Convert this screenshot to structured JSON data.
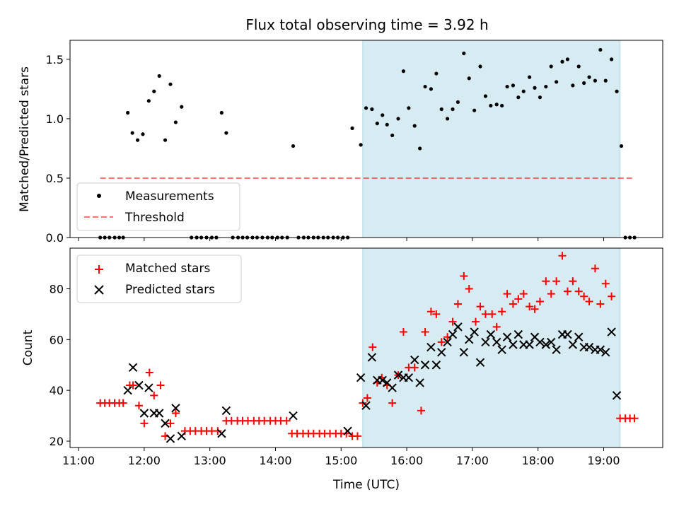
{
  "title": "Flux total observing time = 3.92 h",
  "colors": {
    "shade": "#add8e6",
    "threshold": "#ff0000",
    "matched": "#ff0000",
    "predicted": "#000000",
    "measurements": "#000000"
  },
  "chart_data": [
    {
      "type": "scatter",
      "ylabel": "Matched/Predicted stars",
      "xlim": [
        10.87,
        19.9
      ],
      "ylim": [
        0,
        1.66
      ],
      "yticks": [
        0.0,
        0.5,
        1.0,
        1.5
      ],
      "ytick_labels": [
        "0.0",
        "0.5",
        "1.0",
        "1.5"
      ],
      "xticks": [
        11,
        12,
        13,
        14,
        15,
        16,
        17,
        18,
        19
      ],
      "shaded_interval": [
        15.33,
        19.25
      ],
      "legend_position": "lower-left",
      "series": [
        {
          "name": "Measurements",
          "marker": "dot",
          "points": [
            [
              11.33,
              0
            ],
            [
              11.4,
              0
            ],
            [
              11.47,
              0
            ],
            [
              11.55,
              0
            ],
            [
              11.62,
              0
            ],
            [
              11.68,
              0
            ],
            [
              11.75,
              1.05
            ],
            [
              11.82,
              0.88
            ],
            [
              11.9,
              0.82
            ],
            [
              11.98,
              0.87
            ],
            [
              12.07,
              1.15
            ],
            [
              12.15,
              1.23
            ],
            [
              12.23,
              1.36
            ],
            [
              12.32,
              0.82
            ],
            [
              12.4,
              1.29
            ],
            [
              12.48,
              0.97
            ],
            [
              12.57,
              1.1
            ],
            [
              12.72,
              0
            ],
            [
              12.8,
              0
            ],
            [
              12.87,
              0
            ],
            [
              12.95,
              0
            ],
            [
              13.03,
              0
            ],
            [
              13.1,
              0
            ],
            [
              13.18,
              1.05
            ],
            [
              13.25,
              0.88
            ],
            [
              13.35,
              0
            ],
            [
              13.43,
              0
            ],
            [
              13.5,
              0
            ],
            [
              13.57,
              0
            ],
            [
              13.65,
              0
            ],
            [
              13.72,
              0
            ],
            [
              13.8,
              0
            ],
            [
              13.88,
              0
            ],
            [
              13.95,
              0
            ],
            [
              14.03,
              0
            ],
            [
              14.1,
              0
            ],
            [
              14.18,
              0
            ],
            [
              14.27,
              0.77
            ],
            [
              14.35,
              0
            ],
            [
              14.43,
              0
            ],
            [
              14.5,
              0
            ],
            [
              14.58,
              0
            ],
            [
              14.65,
              0
            ],
            [
              14.73,
              0
            ],
            [
              14.8,
              0
            ],
            [
              14.88,
              0
            ],
            [
              14.95,
              0
            ],
            [
              15.03,
              0
            ],
            [
              15.1,
              0
            ],
            [
              15.17,
              0.92
            ],
            [
              15.3,
              0.78
            ],
            [
              15.38,
              1.09
            ],
            [
              15.47,
              1.08
            ],
            [
              15.55,
              0.96
            ],
            [
              15.63,
              1.03
            ],
            [
              15.7,
              0.95
            ],
            [
              15.78,
              0.86
            ],
            [
              15.87,
              1.0
            ],
            [
              15.95,
              1.4
            ],
            [
              16.03,
              1.09
            ],
            [
              16.12,
              0.94
            ],
            [
              16.2,
              0.75
            ],
            [
              16.28,
              1.27
            ],
            [
              16.37,
              1.25
            ],
            [
              16.45,
              1.38
            ],
            [
              16.53,
              1.08
            ],
            [
              16.62,
              1.0
            ],
            [
              16.7,
              1.08
            ],
            [
              16.78,
              1.14
            ],
            [
              16.87,
              1.55
            ],
            [
              16.95,
              1.34
            ],
            [
              17.03,
              1.07
            ],
            [
              17.12,
              1.44
            ],
            [
              17.2,
              1.19
            ],
            [
              17.28,
              1.11
            ],
            [
              17.37,
              1.12
            ],
            [
              17.45,
              1.11
            ],
            [
              17.53,
              1.27
            ],
            [
              17.62,
              1.28
            ],
            [
              17.7,
              1.18
            ],
            [
              17.78,
              1.23
            ],
            [
              17.87,
              1.35
            ],
            [
              17.95,
              1.26
            ],
            [
              18.03,
              1.18
            ],
            [
              18.12,
              1.27
            ],
            [
              18.2,
              1.44
            ],
            [
              18.28,
              1.31
            ],
            [
              18.37,
              1.48
            ],
            [
              18.45,
              1.5
            ],
            [
              18.53,
              1.28
            ],
            [
              18.62,
              1.44
            ],
            [
              18.7,
              1.3
            ],
            [
              18.78,
              1.35
            ],
            [
              18.87,
              1.32
            ],
            [
              18.95,
              1.58
            ],
            [
              19.03,
              1.32
            ],
            [
              19.12,
              1.5
            ],
            [
              19.2,
              1.23
            ],
            [
              19.27,
              0.77
            ],
            [
              19.33,
              0
            ],
            [
              19.4,
              0
            ],
            [
              19.47,
              0
            ]
          ]
        },
        {
          "name": "Threshold",
          "style": "dashed",
          "points": [
            [
              11.33,
              0.5
            ],
            [
              19.47,
              0.5
            ]
          ]
        }
      ]
    },
    {
      "type": "scatter",
      "xlabel": "Time (UTC)",
      "ylabel": "Count",
      "xlim": [
        10.87,
        19.9
      ],
      "ylim": [
        17.5,
        96
      ],
      "yticks": [
        20,
        40,
        60,
        80
      ],
      "ytick_labels": [
        "20",
        "40",
        "60",
        "80"
      ],
      "xticks": [
        11,
        12,
        13,
        14,
        15,
        16,
        17,
        18,
        19
      ],
      "xtick_labels": [
        "11:00",
        "12:00",
        "13:00",
        "14:00",
        "15:00",
        "16:00",
        "17:00",
        "18:00",
        "19:00"
      ],
      "shaded_interval": [
        15.33,
        19.25
      ],
      "legend_position": "upper-left",
      "series": [
        {
          "name": "Matched stars",
          "marker": "plus",
          "points": [
            [
              11.33,
              35
            ],
            [
              11.4,
              35
            ],
            [
              11.47,
              35
            ],
            [
              11.55,
              35
            ],
            [
              11.62,
              35
            ],
            [
              11.68,
              35
            ],
            [
              11.78,
              42
            ],
            [
              11.83,
              42
            ],
            [
              11.92,
              34
            ],
            [
              12.0,
              27
            ],
            [
              12.08,
              47
            ],
            [
              12.15,
              38
            ],
            [
              12.25,
              42
            ],
            [
              12.32,
              22
            ],
            [
              12.4,
              27
            ],
            [
              12.48,
              31
            ],
            [
              12.62,
              24
            ],
            [
              12.7,
              24
            ],
            [
              12.78,
              24
            ],
            [
              12.87,
              24
            ],
            [
              12.95,
              24
            ],
            [
              13.03,
              24
            ],
            [
              13.12,
              24
            ],
            [
              13.25,
              28
            ],
            [
              13.33,
              28
            ],
            [
              13.42,
              28
            ],
            [
              13.5,
              28
            ],
            [
              13.58,
              28
            ],
            [
              13.67,
              28
            ],
            [
              13.75,
              28
            ],
            [
              13.83,
              28
            ],
            [
              13.92,
              28
            ],
            [
              14.0,
              28
            ],
            [
              14.08,
              28
            ],
            [
              14.17,
              28
            ],
            [
              14.25,
              23
            ],
            [
              14.33,
              23
            ],
            [
              14.42,
              23
            ],
            [
              14.5,
              23
            ],
            [
              14.58,
              23
            ],
            [
              14.67,
              23
            ],
            [
              14.75,
              23
            ],
            [
              14.83,
              23
            ],
            [
              14.92,
              23
            ],
            [
              15.0,
              23
            ],
            [
              15.08,
              23
            ],
            [
              15.17,
              22
            ],
            [
              15.25,
              22
            ],
            [
              15.33,
              35
            ],
            [
              15.4,
              37
            ],
            [
              15.48,
              57
            ],
            [
              15.55,
              43
            ],
            [
              15.62,
              45
            ],
            [
              15.7,
              42
            ],
            [
              15.78,
              35
            ],
            [
              15.87,
              46
            ],
            [
              15.95,
              63
            ],
            [
              16.03,
              49
            ],
            [
              16.12,
              49
            ],
            [
              16.22,
              32
            ],
            [
              16.28,
              63
            ],
            [
              16.37,
              71
            ],
            [
              16.45,
              70
            ],
            [
              16.53,
              59
            ],
            [
              16.62,
              61
            ],
            [
              16.7,
              67
            ],
            [
              16.78,
              74
            ],
            [
              16.87,
              85
            ],
            [
              16.95,
              80
            ],
            [
              17.05,
              67
            ],
            [
              17.12,
              73
            ],
            [
              17.2,
              70
            ],
            [
              17.3,
              70
            ],
            [
              17.37,
              65
            ],
            [
              17.45,
              71
            ],
            [
              17.53,
              78
            ],
            [
              17.62,
              74
            ],
            [
              17.7,
              76
            ],
            [
              17.78,
              78
            ],
            [
              17.87,
              73
            ],
            [
              17.95,
              72
            ],
            [
              18.03,
              75
            ],
            [
              18.12,
              83
            ],
            [
              18.2,
              78
            ],
            [
              18.28,
              83
            ],
            [
              18.37,
              93
            ],
            [
              18.45,
              79
            ],
            [
              18.53,
              83
            ],
            [
              18.62,
              79
            ],
            [
              18.7,
              77
            ],
            [
              18.78,
              75
            ],
            [
              18.87,
              88
            ],
            [
              18.95,
              74
            ],
            [
              19.03,
              82
            ],
            [
              19.12,
              77
            ],
            [
              19.25,
              29
            ],
            [
              19.33,
              29
            ],
            [
              19.4,
              29
            ],
            [
              19.47,
              29
            ]
          ]
        },
        {
          "name": "Predicted stars",
          "marker": "x",
          "points": [
            [
              11.75,
              40
            ],
            [
              11.83,
              49
            ],
            [
              11.92,
              42
            ],
            [
              12.0,
              31
            ],
            [
              12.07,
              41
            ],
            [
              12.15,
              31
            ],
            [
              12.23,
              31
            ],
            [
              12.32,
              27
            ],
            [
              12.4,
              21
            ],
            [
              12.48,
              33
            ],
            [
              12.57,
              22
            ],
            [
              13.18,
              23
            ],
            [
              13.25,
              32
            ],
            [
              14.27,
              30
            ],
            [
              15.1,
              24
            ],
            [
              15.3,
              45
            ],
            [
              15.38,
              34
            ],
            [
              15.47,
              53
            ],
            [
              15.55,
              44
            ],
            [
              15.63,
              44
            ],
            [
              15.7,
              43
            ],
            [
              15.78,
              41
            ],
            [
              15.87,
              46
            ],
            [
              15.95,
              45
            ],
            [
              16.03,
              45
            ],
            [
              16.12,
              52
            ],
            [
              16.2,
              43
            ],
            [
              16.28,
              50
            ],
            [
              16.37,
              57
            ],
            [
              16.45,
              50
            ],
            [
              16.53,
              55
            ],
            [
              16.62,
              59
            ],
            [
              16.7,
              62
            ],
            [
              16.78,
              65
            ],
            [
              16.87,
              55
            ],
            [
              16.95,
              60
            ],
            [
              17.03,
              63
            ],
            [
              17.12,
              51
            ],
            [
              17.2,
              59
            ],
            [
              17.28,
              62
            ],
            [
              17.37,
              59
            ],
            [
              17.45,
              56
            ],
            [
              17.53,
              61
            ],
            [
              17.62,
              58
            ],
            [
              17.7,
              62
            ],
            [
              17.78,
              58
            ],
            [
              17.87,
              58
            ],
            [
              17.95,
              61
            ],
            [
              18.03,
              59
            ],
            [
              18.12,
              58
            ],
            [
              18.2,
              59
            ],
            [
              18.28,
              56
            ],
            [
              18.37,
              62
            ],
            [
              18.45,
              62
            ],
            [
              18.53,
              58
            ],
            [
              18.62,
              61
            ],
            [
              18.7,
              57
            ],
            [
              18.78,
              57
            ],
            [
              18.87,
              56
            ],
            [
              18.95,
              56
            ],
            [
              19.03,
              55
            ],
            [
              19.12,
              63
            ],
            [
              19.2,
              38
            ]
          ]
        }
      ]
    }
  ]
}
